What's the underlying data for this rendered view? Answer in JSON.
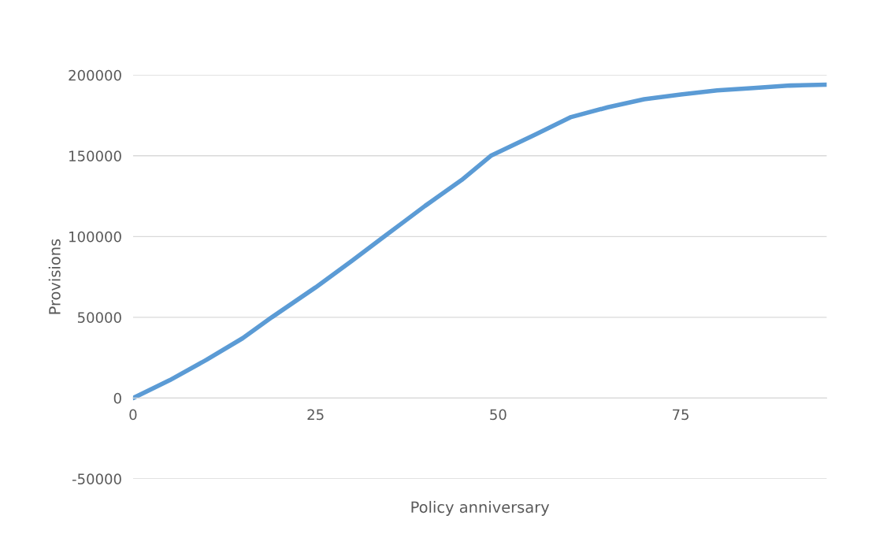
{
  "chart_data": {
    "type": "line",
    "xlabel": "Policy anniversary",
    "ylabel": "Provisions",
    "x": [
      0,
      5,
      10,
      15,
      19,
      25,
      30,
      34.4,
      40,
      45,
      49,
      55,
      60,
      65,
      70,
      75,
      80,
      85,
      90,
      95
    ],
    "series": [
      {
        "color": "#5b9bd5",
        "values": [
          0,
          11000,
          23500,
          37000,
          50000,
          68500,
          85000,
          100000,
          119000,
          135000,
          150000,
          163000,
          174000,
          180000,
          185000,
          188000,
          190500,
          192000,
          193500,
          194000
        ]
      }
    ],
    "xlim": [
      0,
      95
    ],
    "ylim": [
      -50000,
      200000
    ],
    "xticks": [
      0,
      25,
      50,
      75
    ],
    "yticks": [
      -50000,
      0,
      50000,
      100000,
      150000,
      200000
    ],
    "grid": "y",
    "marker": "none",
    "line_style": "solid"
  }
}
